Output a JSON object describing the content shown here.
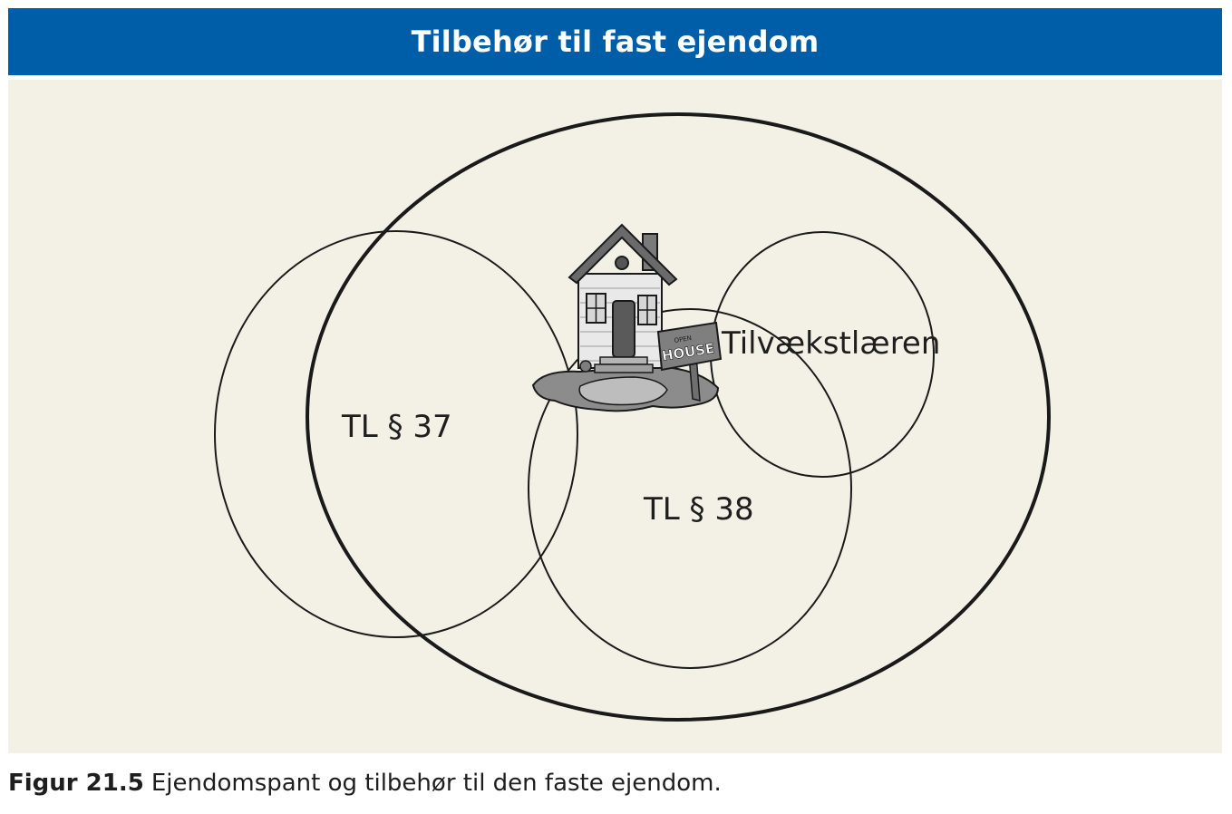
{
  "header": {
    "title": "Tilbehør til fast ejendom"
  },
  "diagram": {
    "regions": {
      "outer": "",
      "tl37": "TL § 37",
      "tl38": "TL § 38",
      "tilvaekst": "Tilvækstlæren"
    },
    "house_sign": {
      "top_text": "OPEN",
      "main_text": "HOUSE"
    }
  },
  "caption": {
    "number": "Figur 21.5",
    "text": "Ejendomspant og tilbehør til den faste ejendom."
  },
  "colors": {
    "header_bg": "#005ea8",
    "header_text": "#ffffff",
    "panel_bg": "#f3f1e6",
    "stroke": "#1a1a1a"
  },
  "icons": {
    "house": "house-illustration"
  }
}
